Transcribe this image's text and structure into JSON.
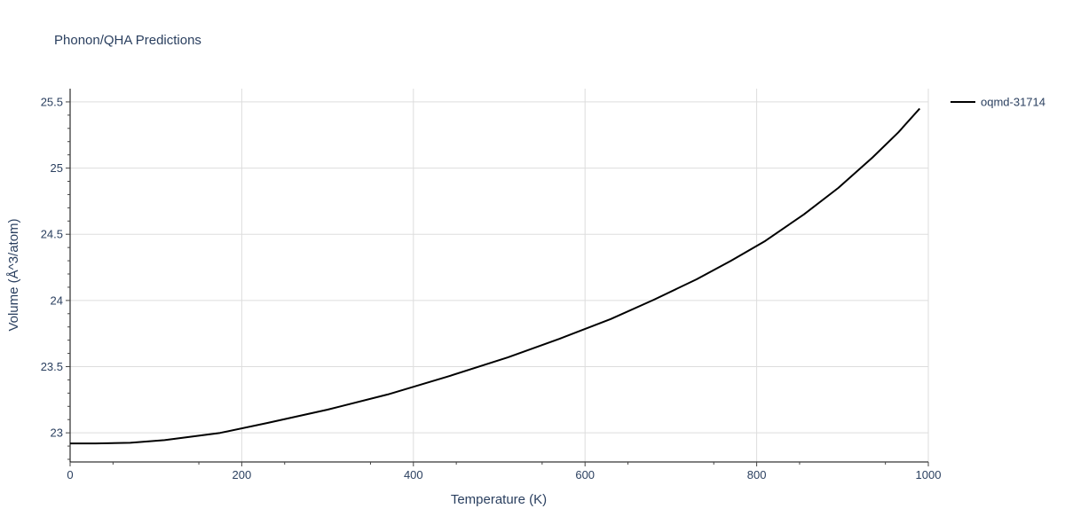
{
  "chart_data": {
    "type": "line",
    "title": "Phonon/QHA Predictions",
    "xlabel": "Temperature (K)",
    "ylabel": "Volume (Å^3/atom)",
    "xlim": [
      0,
      1000
    ],
    "ylim": [
      22.78,
      25.6
    ],
    "xticks": [
      0,
      200,
      400,
      600,
      800,
      1000
    ],
    "xtick_labels": [
      "0",
      "200",
      "400",
      "600",
      "800",
      "1000"
    ],
    "yticks": [
      23,
      23.5,
      24,
      24.5,
      25,
      25.5
    ],
    "ytick_labels": [
      "23",
      "23.5",
      "24",
      "24.5",
      "25",
      "25.5"
    ],
    "grid": true,
    "legend_position": "top-right",
    "series": [
      {
        "name": "oqmd-31714",
        "color": "#000000",
        "x": [
          0,
          30,
          70,
          110,
          175,
          230,
          300,
          370,
          440,
          510,
          570,
          630,
          680,
          730,
          770,
          810,
          855,
          895,
          935,
          965,
          990
        ],
        "y": [
          22.92,
          22.92,
          22.925,
          22.945,
          23.0,
          23.075,
          23.175,
          23.29,
          23.425,
          23.57,
          23.71,
          23.86,
          24.005,
          24.16,
          24.3,
          24.45,
          24.65,
          24.85,
          25.08,
          25.27,
          25.45
        ]
      }
    ]
  }
}
